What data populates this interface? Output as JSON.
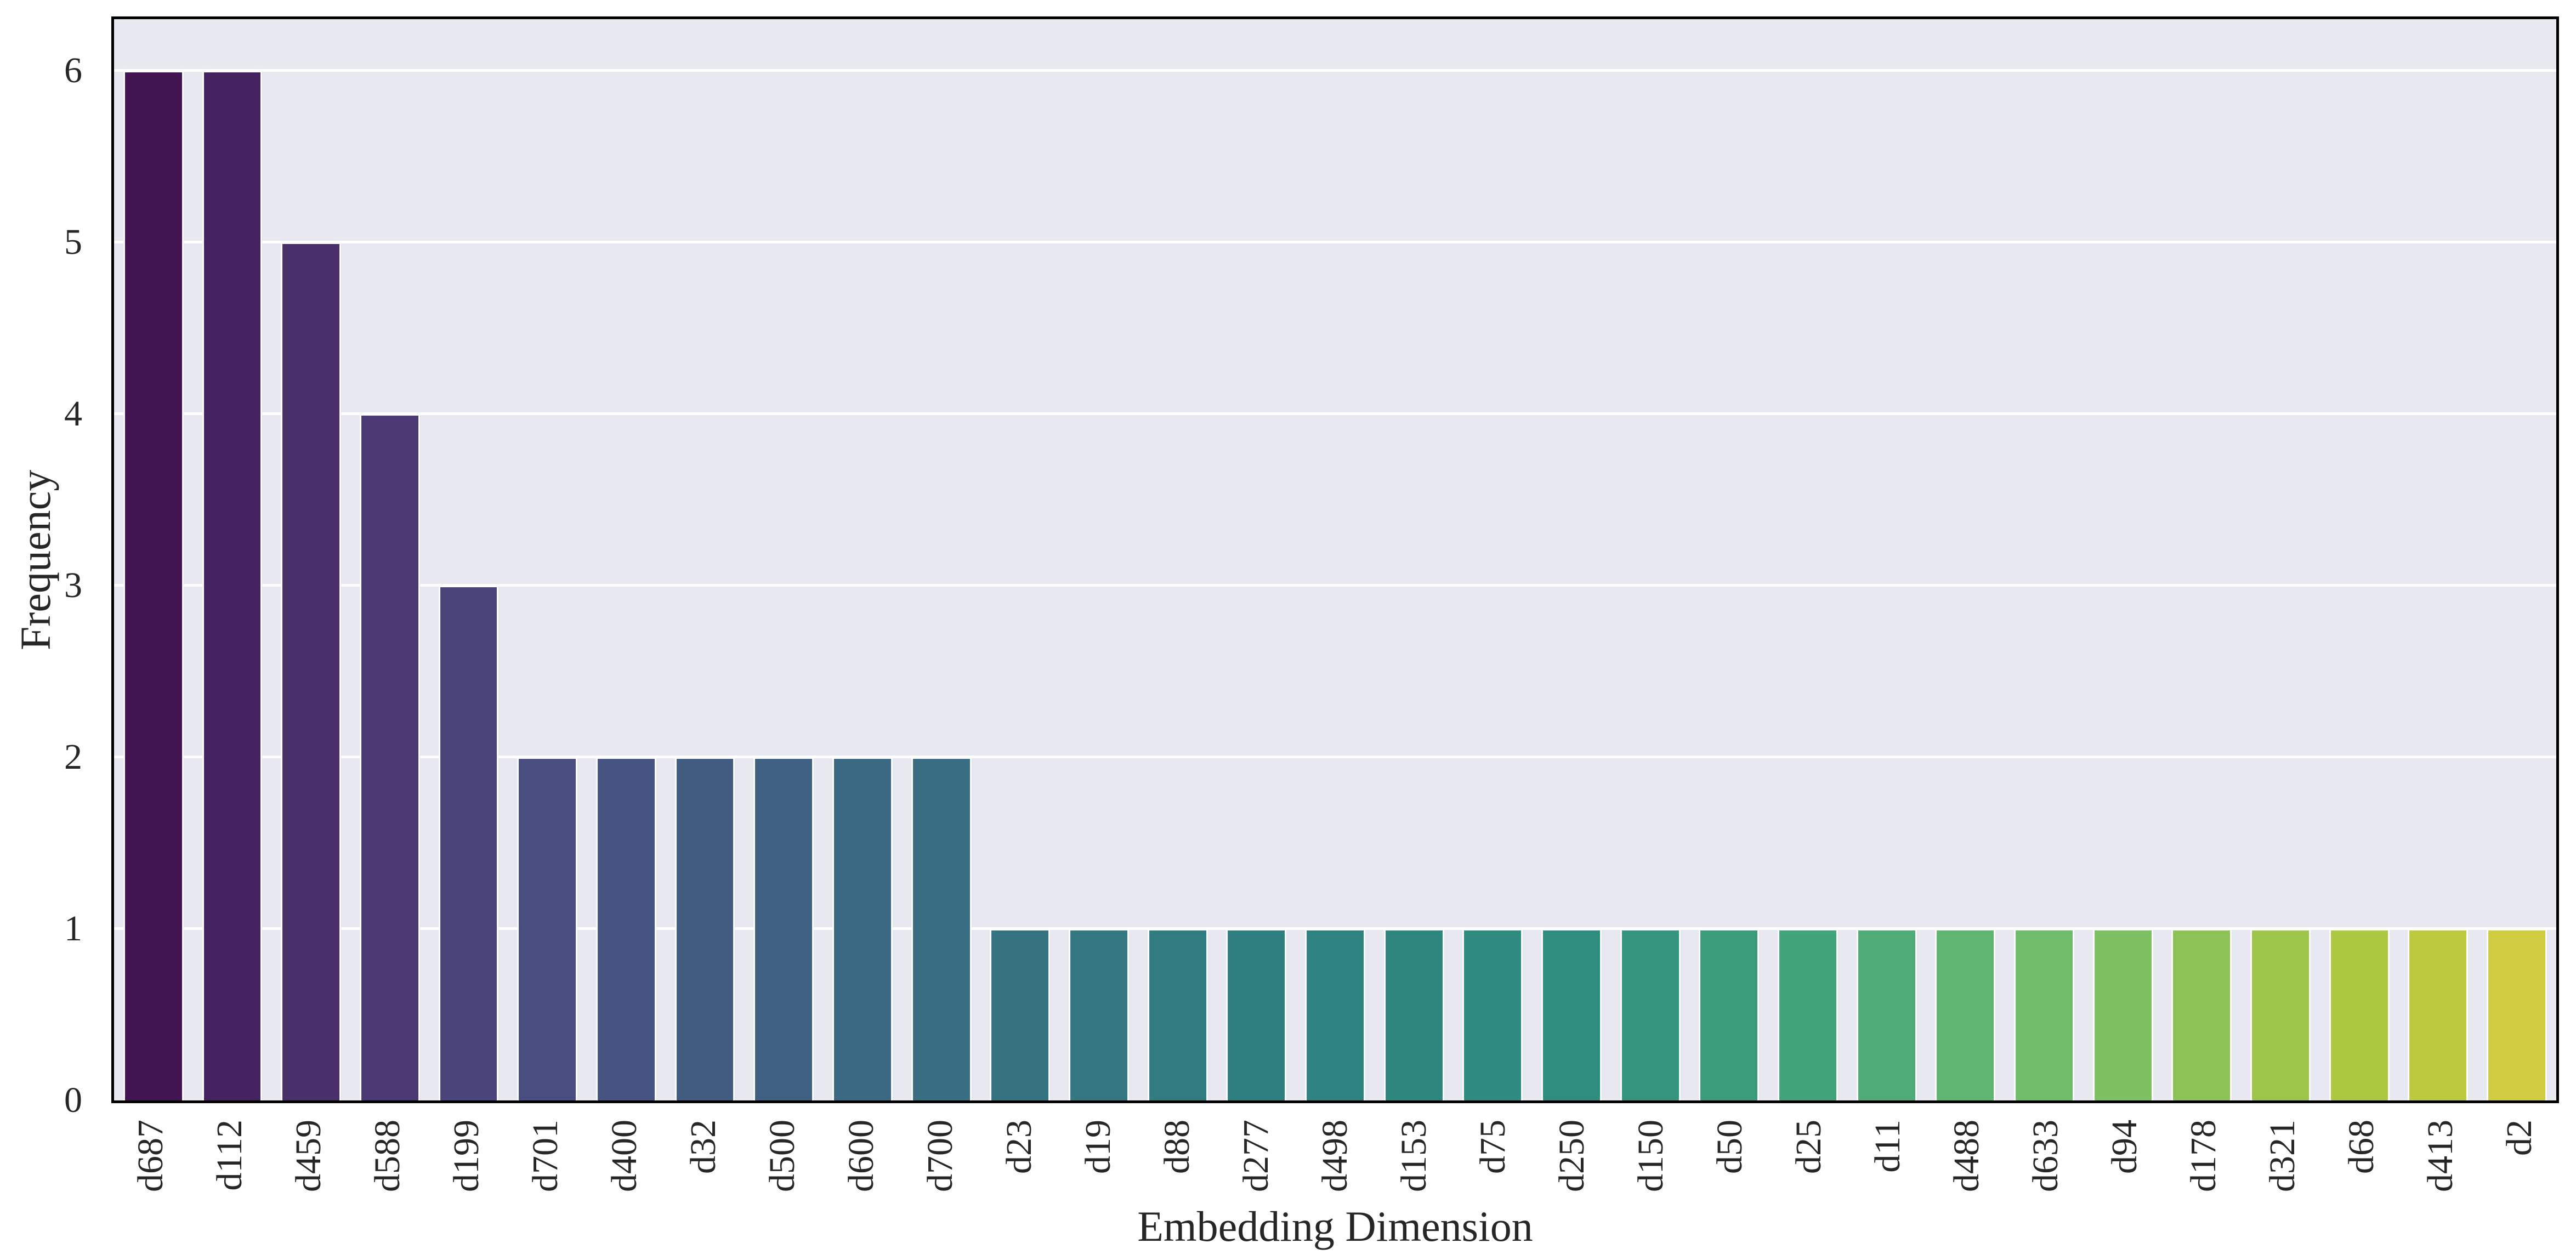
{
  "figure": {
    "background": "#ffffff",
    "plot_background": "#e8e8f1",
    "grid_color": "#ffffff",
    "spine_color": "#000000",
    "text_color": "#262626"
  },
  "chart_data": {
    "type": "bar",
    "title": "",
    "xlabel": "Embedding Dimension",
    "ylabel": "Frequency",
    "categories": [
      "d687",
      "d112",
      "d459",
      "d588",
      "d199",
      "d701",
      "d400",
      "d32",
      "d500",
      "d600",
      "d700",
      "d23",
      "d19",
      "d88",
      "d277",
      "d498",
      "d153",
      "d75",
      "d250",
      "d150",
      "d50",
      "d25",
      "d11",
      "d488",
      "d633",
      "d94",
      "d178",
      "d321",
      "d68",
      "d413",
      "d2"
    ],
    "values": [
      6,
      6,
      5,
      4,
      3,
      2,
      2,
      2,
      2,
      2,
      2,
      1,
      1,
      1,
      1,
      1,
      1,
      1,
      1,
      1,
      1,
      1,
      1,
      1,
      1,
      1,
      1,
      1,
      1,
      1,
      1
    ],
    "bar_colors": [
      "#411452",
      "#452360",
      "#49306b",
      "#4a3972",
      "#494479",
      "#484c7e",
      "#455480",
      "#425b81",
      "#3e6182",
      "#3b6882",
      "#386d82",
      "#357381",
      "#337881",
      "#317c80",
      "#307f80",
      "#2e827f",
      "#2e867f",
      "#2f8a7f",
      "#2e8d7e",
      "#34947d",
      "#3b9c7b",
      "#42a479",
      "#4fac76",
      "#60b571",
      "#6fbc6b",
      "#7dc062",
      "#8cc256",
      "#9cc54a",
      "#acc841",
      "#bdca40",
      "#cfcc3f"
    ],
    "yticks": [
      0,
      1,
      2,
      3,
      4,
      5,
      6
    ],
    "ylim": [
      0,
      6.3
    ],
    "grid": "horizontal",
    "legend": "none",
    "bar_width_fraction": 0.765
  }
}
